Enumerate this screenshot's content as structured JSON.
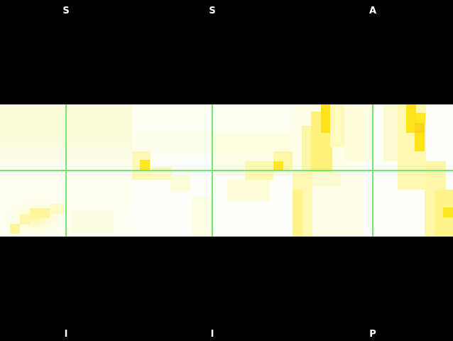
{
  "viewer": {
    "panels": [
      {
        "id": "sagittal-left",
        "top_label": "S",
        "bottom_label": "I"
      },
      {
        "id": "sagittal-right",
        "top_label": "S",
        "bottom_label": "I"
      },
      {
        "id": "axial",
        "top_label": "A",
        "bottom_label": "P"
      }
    ],
    "colors": {
      "background": "#000000",
      "crosshair": "#72e672",
      "overlay_low": "#fffff2",
      "overlay_high": "#ffd800"
    }
  }
}
